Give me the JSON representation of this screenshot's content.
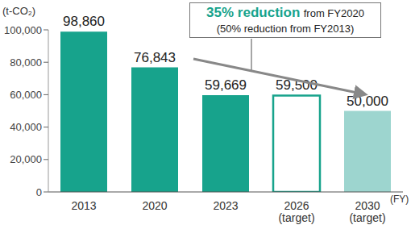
{
  "chart_data": {
    "type": "bar",
    "ylabel": "(t-CO₂)",
    "xlabel": "(FY)",
    "categories": [
      "2013",
      "2020",
      "2023",
      "2026\n(target)",
      "2030\n(target)"
    ],
    "values": [
      98860,
      76843,
      59669,
      59500,
      50000
    ],
    "value_labels": [
      "98,860",
      "76,843",
      "59,669",
      "59,500",
      "50,000"
    ],
    "data_labels": true,
    "color": "#17a38c",
    "colors": [
      "#17a38c",
      "#17a38c",
      "#17a38c",
      "#ffffff",
      "#9dd5cf"
    ],
    "ylim": [
      0,
      100000
    ],
    "yticks": [
      0,
      {
        "value": 20000,
        "label": "20,000"
      },
      {
        "value": 40000,
        "label": "40,000"
      },
      {
        "value": 60000,
        "label": "60,000"
      },
      {
        "value": 80000,
        "label": "80,000"
      },
      {
        "value": 100000,
        "label": "100,000"
      }
    ],
    "grid": false,
    "annotation": {
      "highlight": "35% reduction",
      "text": "from FY2020",
      "note": "(50% reduction from FY2013)"
    }
  }
}
